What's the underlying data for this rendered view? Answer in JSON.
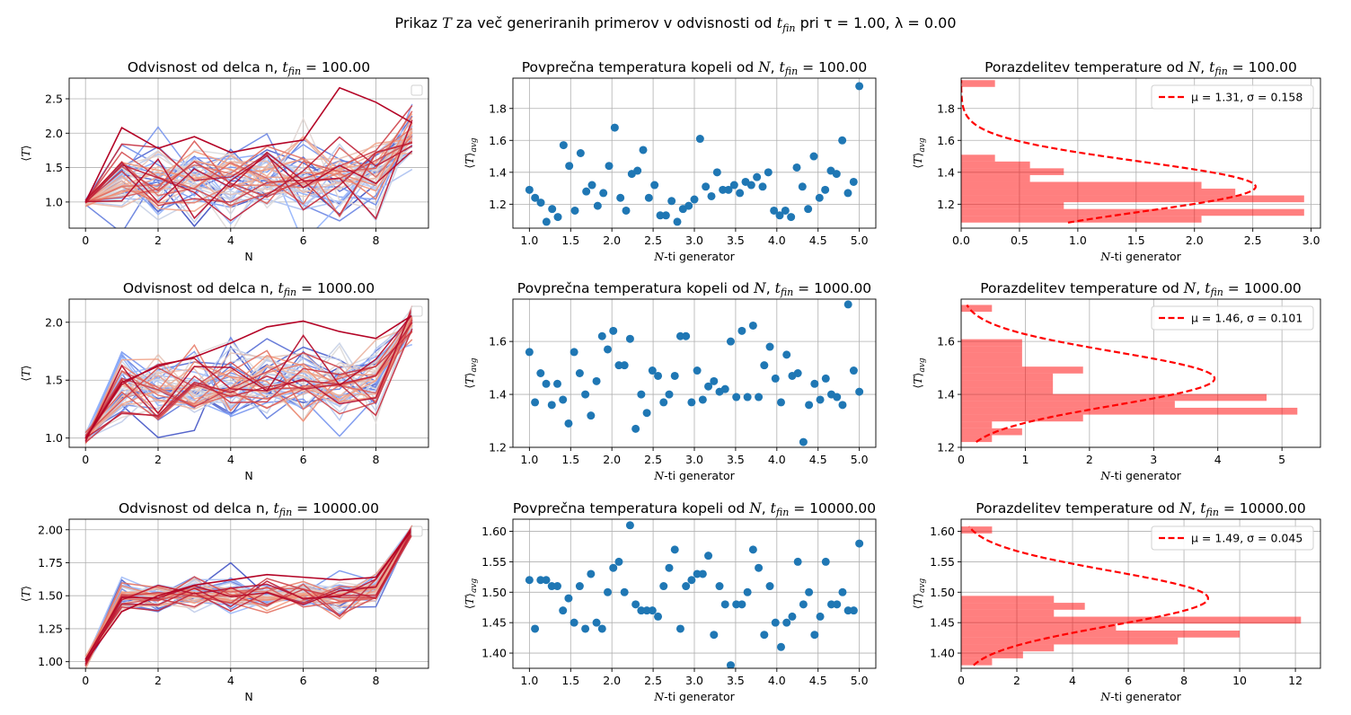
{
  "figure": {
    "suptitle": {
      "prefix": "Prikaz ",
      "var1": "T",
      "mid": " za več generiranih primerov v odvisnosti od ",
      "var2": "t",
      "sub2": "fin",
      "rest": " pri τ = 1.00, λ = 0.00"
    }
  },
  "chart_data": [
    {
      "id": "lines-100",
      "type": "line",
      "title_text": "Odvisnost od delca n, ",
      "title_var": "t",
      "title_sub": "fin",
      "title_val": " = 100.00",
      "xlabel": "N",
      "ylabel": "⟨T⟩",
      "xlim": [
        -0.45,
        9.45
      ],
      "ylim": [
        0.62,
        2.8
      ],
      "xticks": [
        0,
        2,
        4,
        6,
        8
      ],
      "yticks": [
        1.0,
        1.5,
        2.0,
        2.5
      ],
      "x": [
        0,
        1,
        2,
        3,
        4,
        5,
        6,
        7,
        8,
        9
      ],
      "series_count": 50,
      "start": 1.0,
      "mid_mean": 1.31,
      "end_mean": 2.0,
      "spread": 0.28,
      "end_spread": 0.18,
      "legend": "empty box top-right",
      "highlight": [
        1.0,
        2.08,
        1.78,
        1.95,
        1.72,
        1.82,
        1.9,
        2.66,
        2.45,
        2.15
      ],
      "colormap": "coolwarm"
    },
    {
      "id": "scatter-100",
      "type": "scatter",
      "title_text": "Povprečna temperatura kopeli od ",
      "title_var": "N",
      "title_sub": "",
      "title_val": ", ",
      "title_var2": "t",
      "title_sub2": "fin",
      "title_val2": " = 100.00",
      "xlabel_var": "N",
      "xlabel_rest": "-ti generator",
      "ylabel": "⟨T⟩avg",
      "xlim": [
        0.8,
        5.2
      ],
      "ylim": [
        1.05,
        1.99
      ],
      "xticks": [
        1.0,
        1.5,
        2.0,
        2.5,
        3.0,
        3.5,
        4.0,
        4.5,
        5.0
      ],
      "yticks": [
        1.2,
        1.4,
        1.6,
        1.8
      ],
      "x_start": 1.0,
      "x_end": 5.0,
      "values": [
        1.29,
        1.24,
        1.21,
        1.09,
        1.17,
        1.12,
        1.57,
        1.44,
        1.16,
        1.52,
        1.28,
        1.32,
        1.19,
        1.27,
        1.44,
        1.68,
        1.24,
        1.16,
        1.39,
        1.41,
        1.54,
        1.24,
        1.32,
        1.13,
        1.13,
        1.22,
        1.09,
        1.17,
        1.19,
        1.23,
        1.61,
        1.31,
        1.25,
        1.4,
        1.29,
        1.29,
        1.32,
        1.27,
        1.34,
        1.32,
        1.37,
        1.31,
        1.4,
        1.16,
        1.13,
        1.16,
        1.12,
        1.43,
        1.31,
        1.17,
        1.5,
        1.24,
        1.29,
        1.41,
        1.39,
        1.6,
        1.27,
        1.34,
        1.94
      ]
    },
    {
      "id": "hist-100",
      "type": "bar",
      "title_text": "Porazdelitev temperature od ",
      "title_var": "N",
      "title_sub": "",
      "title_val": ", ",
      "title_var2": "t",
      "title_sub2": "fin",
      "title_val2": " = 100.00",
      "xlabel_var": "N",
      "xlabel_rest": "-ti generator",
      "ylabel": "⟨T⟩avg",
      "xlim": [
        0,
        3.08
      ],
      "ylim": [
        1.05,
        1.99
      ],
      "xticks": [
        0.0,
        0.5,
        1.0,
        1.5,
        2.0,
        2.5,
        3.0
      ],
      "yticks": [
        1.2,
        1.4,
        1.6,
        1.8
      ],
      "bin_start": 1.085,
      "bin_width": 0.0425,
      "counts": [
        2.06,
        2.94,
        0.88,
        2.94,
        2.35,
        2.06,
        0.59,
        0.88,
        0.59,
        0.29,
        0.0,
        0.0,
        0.0,
        0.0,
        0.0,
        0.0,
        0.0,
        0.0,
        0.0,
        0.0,
        0.29
      ],
      "fit": {
        "mu": 1.31,
        "sigma": 0.158
      },
      "legend": "μ = 1.31, σ = 0.158",
      "legend_position": "top-right"
    },
    {
      "id": "lines-1000",
      "type": "line",
      "title_text": "Odvisnost od delca n, ",
      "title_var": "t",
      "title_sub": "fin",
      "title_val": " = 1000.00",
      "xlabel": "N",
      "ylabel": "⟨T⟩",
      "xlim": [
        -0.45,
        9.45
      ],
      "ylim": [
        0.92,
        2.2
      ],
      "xticks": [
        0,
        2,
        4,
        6,
        8
      ],
      "yticks": [
        1.0,
        1.5,
        2.0
      ],
      "x": [
        0,
        1,
        2,
        3,
        4,
        5,
        6,
        7,
        8,
        9
      ],
      "series_count": 50,
      "start": 1.0,
      "mid_mean": 1.45,
      "end_mean": 2.0,
      "spread": 0.15,
      "end_spread": 0.07,
      "legend": "empty box top-right",
      "highlight": [
        1.0,
        1.48,
        1.62,
        1.7,
        1.82,
        1.96,
        2.01,
        1.92,
        1.86,
        2.06
      ],
      "colormap": "coolwarm"
    },
    {
      "id": "scatter-1000",
      "type": "scatter",
      "title_text": "Povprečna temperatura kopeli od ",
      "title_var": "N",
      "title_sub": "",
      "title_val": ", ",
      "title_var2": "t",
      "title_sub2": "fin",
      "title_val2": " = 1000.00",
      "xlabel_var": "N",
      "xlabel_rest": "-ti generator",
      "ylabel": "⟨T⟩avg",
      "xlim": [
        0.8,
        5.2
      ],
      "ylim": [
        1.2,
        1.76
      ],
      "xticks": [
        1.0,
        1.5,
        2.0,
        2.5,
        3.0,
        3.5,
        4.0,
        4.5,
        5.0
      ],
      "yticks": [
        1.2,
        1.4,
        1.6
      ],
      "x_start": 1.0,
      "x_end": 5.0,
      "values": [
        1.56,
        1.37,
        1.48,
        1.44,
        1.36,
        1.44,
        1.38,
        1.29,
        1.56,
        1.48,
        1.4,
        1.32,
        1.45,
        1.62,
        1.57,
        1.64,
        1.51,
        1.51,
        1.61,
        1.27,
        1.4,
        1.33,
        1.49,
        1.47,
        1.37,
        1.4,
        1.47,
        1.62,
        1.62,
        1.37,
        1.49,
        1.38,
        1.43,
        1.45,
        1.41,
        1.42,
        1.6,
        1.39,
        1.64,
        1.39,
        1.66,
        1.39,
        1.51,
        1.58,
        1.46,
        1.37,
        1.55,
        1.47,
        1.48,
        1.22,
        1.36,
        1.44,
        1.38,
        1.46,
        1.4,
        1.39,
        1.36,
        1.74,
        1.49,
        1.41
      ]
    },
    {
      "id": "hist-1000",
      "type": "bar",
      "title_text": "Porazdelitev temperature od ",
      "title_var": "N",
      "title_sub": "",
      "title_val": ", ",
      "title_var2": "t",
      "title_sub2": "fin",
      "title_val2": " = 1000.00",
      "xlabel_var": "N",
      "xlabel_rest": "-ti generator",
      "ylabel": "⟨T⟩avg",
      "xlim": [
        0,
        5.6
      ],
      "ylim": [
        1.2,
        1.76
      ],
      "xticks": [
        0,
        1,
        2,
        3,
        4,
        5
      ],
      "yticks": [
        1.2,
        1.4,
        1.6
      ],
      "bin_start": 1.22,
      "bin_width": 0.0259,
      "counts": [
        0.48,
        0.95,
        0.48,
        1.9,
        5.24,
        3.33,
        4.76,
        1.43,
        1.43,
        1.43,
        1.9,
        0.95,
        0.95,
        0.95,
        0.95,
        0.0,
        0.0,
        0.0,
        0.0,
        0.48
      ],
      "fit": {
        "mu": 1.46,
        "sigma": 0.101
      },
      "legend": "μ = 1.46, σ = 0.101",
      "legend_position": "top-right"
    },
    {
      "id": "lines-10000",
      "type": "line",
      "title_text": "Odvisnost od delca n, ",
      "title_var": "t",
      "title_sub": "fin",
      "title_val": " = 10000.00",
      "xlabel": "N",
      "ylabel": "⟨T⟩",
      "xlim": [
        -0.45,
        9.45
      ],
      "ylim": [
        0.95,
        2.08
      ],
      "xticks": [
        0,
        2,
        4,
        6,
        8
      ],
      "yticks": [
        1.0,
        1.25,
        1.5,
        1.75,
        2.0
      ],
      "x": [
        0,
        1,
        2,
        3,
        4,
        5,
        6,
        7,
        8,
        9
      ],
      "series_count": 50,
      "start": 1.0,
      "mid_mean": 1.5,
      "end_mean": 2.0,
      "spread": 0.06,
      "end_spread": 0.02,
      "legend": "empty box top-right",
      "highlight": [
        1.0,
        1.38,
        1.5,
        1.58,
        1.62,
        1.66,
        1.64,
        1.62,
        1.64,
        2.0
      ],
      "colormap": "coolwarm"
    },
    {
      "id": "scatter-10000",
      "type": "scatter",
      "title_text": "Povprečna temperatura kopeli od ",
      "title_var": "N",
      "title_sub": "",
      "title_val": ", ",
      "title_var2": "t",
      "title_sub2": "fin",
      "title_val2": " = 10000.00",
      "xlabel_var": "N",
      "xlabel_rest": "-ti generator",
      "ylabel": "⟨T⟩avg",
      "xlim": [
        0.8,
        5.2
      ],
      "ylim": [
        1.375,
        1.62
      ],
      "xticks": [
        1.0,
        1.5,
        2.0,
        2.5,
        3.0,
        3.5,
        4.0,
        4.5,
        5.0
      ],
      "yticks": [
        1.4,
        1.45,
        1.5,
        1.55,
        1.6
      ],
      "x_start": 1.0,
      "x_end": 5.0,
      "values": [
        1.52,
        1.44,
        1.52,
        1.52,
        1.51,
        1.51,
        1.47,
        1.49,
        1.45,
        1.51,
        1.44,
        1.53,
        1.45,
        1.44,
        1.5,
        1.54,
        1.55,
        1.5,
        1.61,
        1.48,
        1.47,
        1.47,
        1.47,
        1.46,
        1.51,
        1.54,
        1.57,
        1.44,
        1.51,
        1.52,
        1.53,
        1.53,
        1.56,
        1.43,
        1.51,
        1.48,
        1.38,
        1.48,
        1.48,
        1.5,
        1.57,
        1.54,
        1.43,
        1.51,
        1.45,
        1.41,
        1.45,
        1.46,
        1.55,
        1.48,
        1.5,
        1.43,
        1.46,
        1.55,
        1.48,
        1.48,
        1.5,
        1.47,
        1.47,
        1.58
      ]
    },
    {
      "id": "hist-10000",
      "type": "bar",
      "title_text": "Porazdelitev temperature od ",
      "title_var": "N",
      "title_sub": "",
      "title_val": ", ",
      "title_var2": "t",
      "title_sub2": "fin",
      "title_val2": " = 10000.00",
      "xlabel_var": "N",
      "xlabel_rest": "-ti generator",
      "ylabel": "⟨T⟩avg",
      "xlim": [
        0,
        12.9
      ],
      "ylim": [
        1.375,
        1.62
      ],
      "xticks": [
        0,
        2,
        4,
        6,
        8,
        10,
        12
      ],
      "yticks": [
        1.4,
        1.45,
        1.5,
        1.55,
        1.6
      ],
      "bin_start": 1.38,
      "bin_width": 0.0114,
      "counts": [
        1.11,
        2.22,
        3.33,
        7.78,
        10.0,
        5.56,
        12.2,
        3.33,
        4.44,
        3.33,
        0.0,
        0.0,
        0.0,
        0.0,
        0.0,
        0.0,
        0.0,
        0.0,
        0.0,
        1.11
      ],
      "fit": {
        "mu": 1.49,
        "sigma": 0.045
      },
      "legend": "μ = 1.49, σ = 0.045",
      "legend_position": "top-right"
    }
  ]
}
